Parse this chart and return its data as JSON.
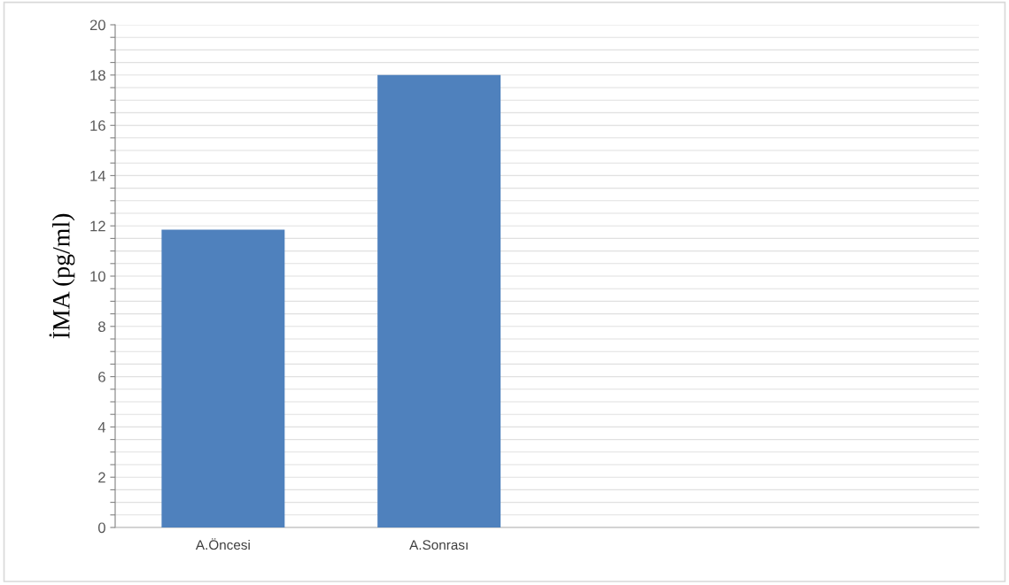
{
  "chart_data": {
    "type": "bar",
    "ylabel": "İMA (pg/ml)",
    "categories": [
      "A.Öncesi",
      "A.Sonrası",
      null,
      null
    ],
    "values": [
      11.85,
      18.0,
      null,
      null
    ],
    "color": "#4f81bd",
    "ylim": [
      0,
      20
    ],
    "yticks": [
      0,
      {
        "value": 0.5,
        "label": null
      },
      {
        "value": 1,
        "label": null
      },
      {
        "value": 1.5,
        "label": null
      },
      2,
      {
        "value": 2.5,
        "label": null
      },
      {
        "value": 3,
        "label": null
      },
      {
        "value": 3.5,
        "label": null
      },
      4,
      {
        "value": 4.5,
        "label": null
      },
      {
        "value": 5,
        "label": null
      },
      {
        "value": 5.5,
        "label": null
      },
      6,
      {
        "value": 6.5,
        "label": null
      },
      {
        "value": 7,
        "label": null
      },
      {
        "value": 7.5,
        "label": null
      },
      8,
      {
        "value": 8.5,
        "label": null
      },
      {
        "value": 9,
        "label": null
      },
      {
        "value": 9.5,
        "label": null
      },
      10,
      {
        "value": 10.5,
        "label": null
      },
      {
        "value": 11,
        "label": null
      },
      {
        "value": 11.5,
        "label": null
      },
      12,
      {
        "value": 12.5,
        "label": null
      },
      {
        "value": 13,
        "label": null
      },
      {
        "value": 13.5,
        "label": null
      },
      14,
      {
        "value": 14.5,
        "label": null
      },
      {
        "value": 15,
        "label": null
      },
      {
        "value": 15.5,
        "label": null
      },
      16,
      {
        "value": 16.5,
        "label": null
      },
      {
        "value": 17,
        "label": null
      },
      {
        "value": 17.5,
        "label": null
      },
      18,
      {
        "value": 18.5,
        "label": null
      },
      {
        "value": 19,
        "label": null
      },
      {
        "value": 19.5,
        "label": null
      },
      20
    ],
    "grid": "y"
  }
}
